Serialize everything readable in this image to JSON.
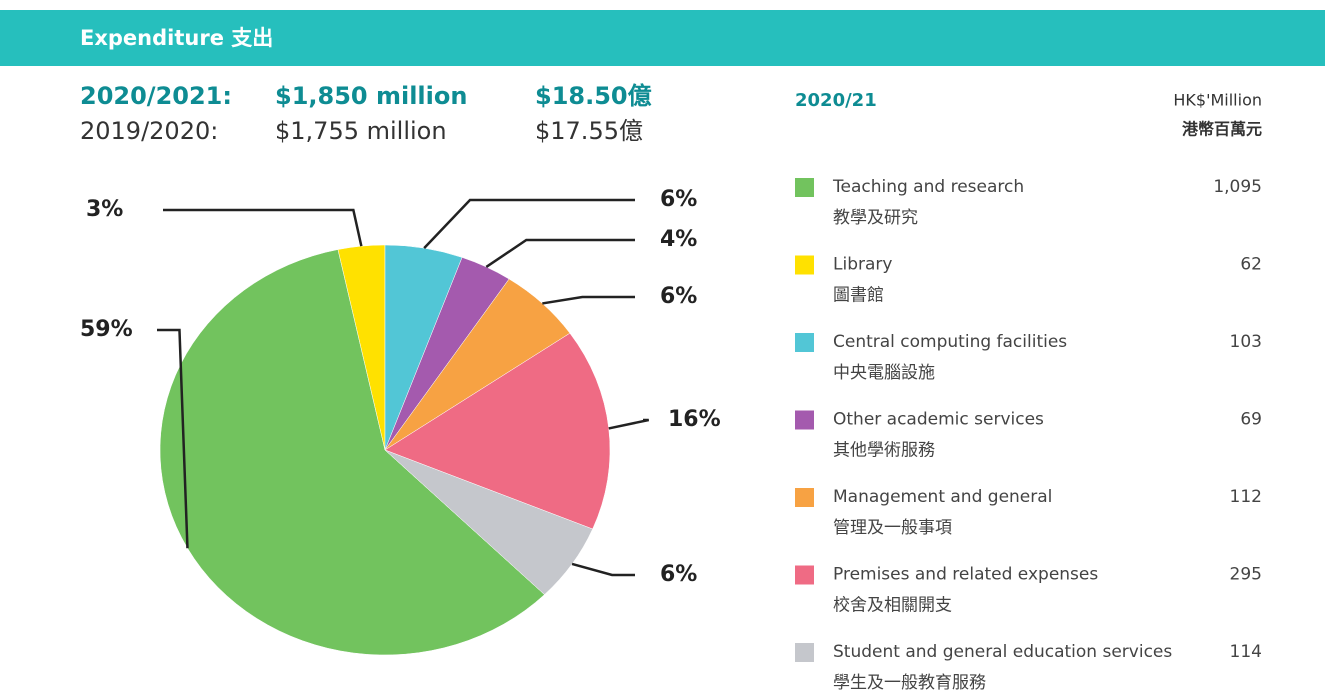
{
  "header": {
    "title": "Expenditure 支出"
  },
  "summary": {
    "current_year": "2020/2021:",
    "current_total": "$1,850 million",
    "current_total_zh": "$18.50億",
    "previous_year": "2019/2020:",
    "previous_total": "$1,755 million",
    "previous_total_zh": "$17.55億"
  },
  "chart_data": {
    "type": "pie",
    "title": "2020/21",
    "unit": "HK$'Million",
    "unit_zh": "港幣百萬元",
    "categories": [
      "Teaching and research",
      "Library",
      "Central computing facilities",
      "Other academic services",
      "Management and general",
      "Premises and related expenses",
      "Student and general education services"
    ],
    "categories_zh": [
      "教學及研究",
      "圖書館",
      "中央電腦設施",
      "其他學術服務",
      "管理及一般事項",
      "校舍及相關開支",
      "學生及一般教育服務"
    ],
    "values": [
      1095,
      62,
      103,
      69,
      112,
      295,
      114
    ],
    "value_labels": [
      "1,095",
      "62",
      "103",
      "69",
      "112",
      "295",
      "114"
    ],
    "percent_labels": [
      "59%",
      "3%",
      "6%",
      "4%",
      "6%",
      "16%",
      "6%"
    ],
    "colors": [
      "#72c35e",
      "#ffe100",
      "#52c6d6",
      "#a45aae",
      "#f7a243",
      "#ef6b84",
      "#c5c7cc"
    ]
  }
}
